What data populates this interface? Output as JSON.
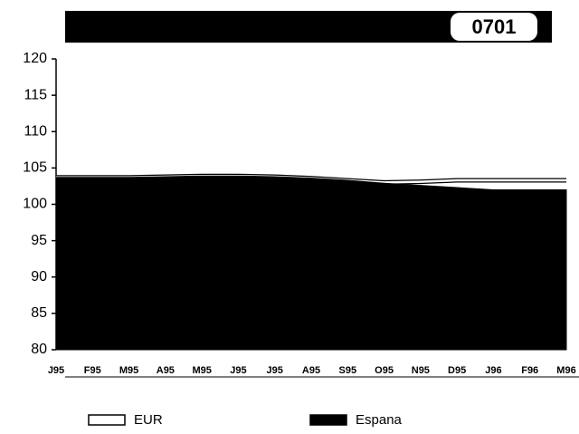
{
  "chart_data": {
    "type": "area",
    "title": "0701",
    "categories": [
      "J95",
      "F95",
      "M95",
      "A95",
      "M95",
      "J95",
      "J95",
      "A95",
      "S95",
      "O95",
      "N95",
      "D95",
      "J96",
      "F96",
      "M96"
    ],
    "series": [
      {
        "name": "EUR",
        "color": "#ffffff",
        "values": [
          103.7,
          103.7,
          103.7,
          103.8,
          103.9,
          103.9,
          103.8,
          103.6,
          103.3,
          103.0,
          103.1,
          103.3,
          103.3,
          103.3,
          103.3
        ]
      },
      {
        "name": "Espana",
        "color": "#000000",
        "values": [
          103.7,
          103.7,
          103.7,
          103.8,
          103.9,
          103.9,
          103.8,
          103.6,
          103.3,
          102.9,
          102.6,
          102.3,
          102.0,
          102.0,
          102.0
        ]
      }
    ],
    "ylim": [
      80,
      120
    ],
    "yticks": [
      80,
      85,
      90,
      95,
      100,
      105,
      110,
      115,
      120
    ],
    "legend": "bottom"
  }
}
